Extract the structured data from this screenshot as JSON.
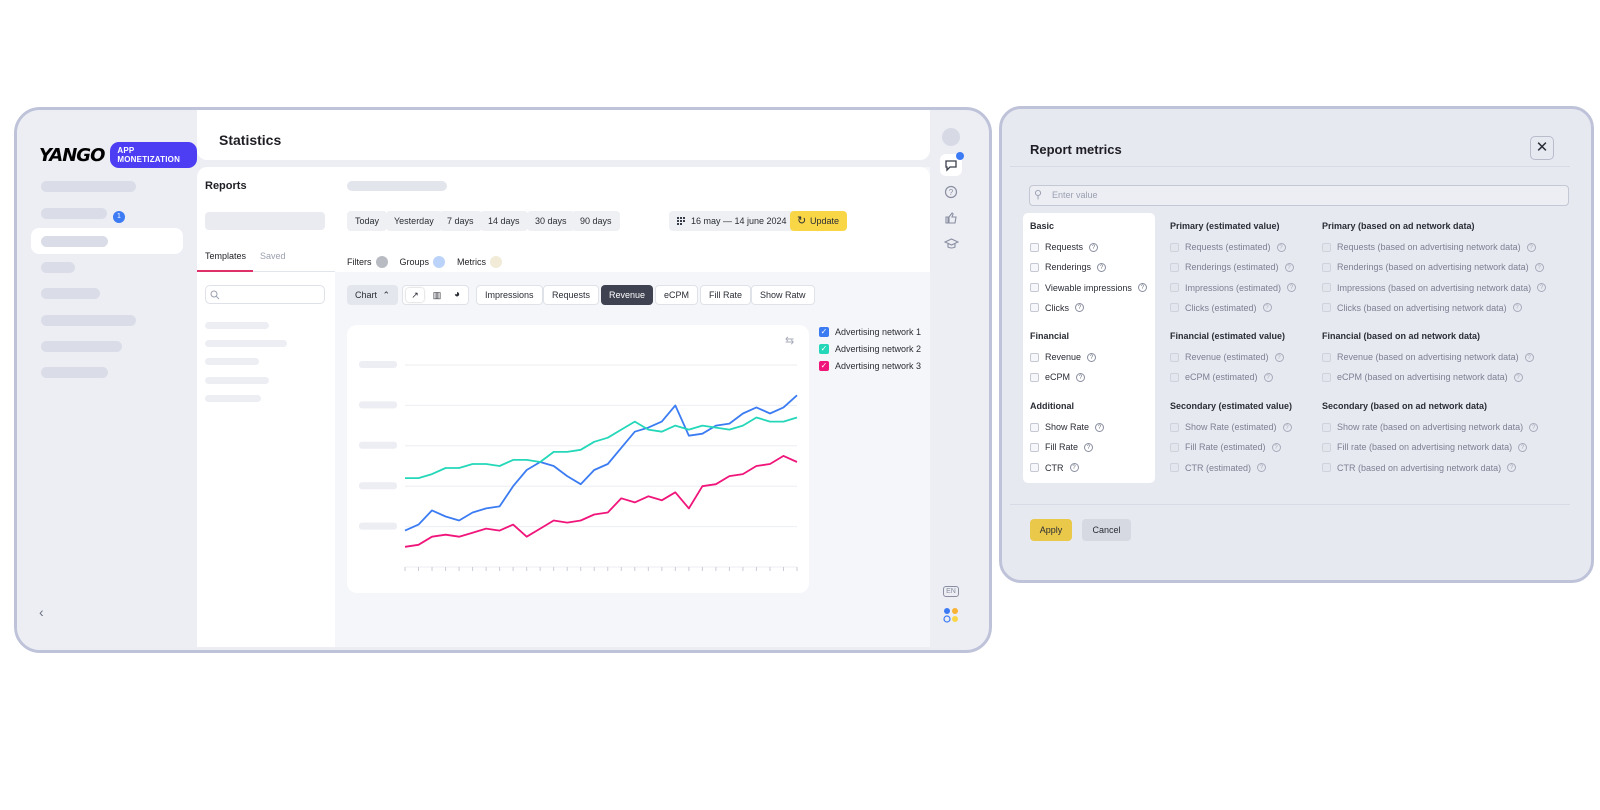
{
  "brand": {
    "name": "YANGO",
    "badge": "APP MONETIZATION",
    "nav_badge_count": "1"
  },
  "header": {
    "title": "Statistics"
  },
  "reports": {
    "title": "Reports",
    "tabs": [
      "Templates",
      "Saved"
    ]
  },
  "toolbar": {
    "periods": [
      "Today",
      "Yesterday",
      "7 days",
      "14 days",
      "30 days",
      "90 days"
    ],
    "date_range": "16 may — 14 june 2024",
    "update_label": "Update",
    "filters_label": "Filters",
    "groups_label": "Groups",
    "metrics_label": "Metrics",
    "chart_label": "Chart",
    "metric_tabs": [
      "Impressions",
      "Requests",
      "Revenue",
      "eCPM",
      "Fill Rate",
      "Show Ratw"
    ],
    "active_metric": "Revenue"
  },
  "rail": {
    "language": "EN"
  },
  "colors": {
    "network_1": "#3b7cf2",
    "network_2": "#23d7b8",
    "network_3": "#f0157a",
    "accent_yellow": "#f9d645"
  },
  "chart_data": {
    "type": "line",
    "x": [
      1,
      2,
      3,
      4,
      5,
      6,
      7,
      8,
      9,
      10,
      11,
      12,
      13,
      14,
      15,
      16,
      17,
      18,
      19,
      20,
      21,
      22,
      23,
      24,
      25,
      26,
      27,
      28,
      29,
      30
    ],
    "series": [
      {
        "name": "Advertising network 1",
        "values": [
          18,
          21,
          28,
          25,
          23,
          27,
          29,
          30,
          40,
          48,
          52,
          50,
          45,
          41,
          48,
          51,
          59,
          67,
          69,
          72,
          80,
          65,
          66,
          70,
          71,
          76,
          79,
          76,
          79,
          85
        ]
      },
      {
        "name": "Advertising network 2",
        "values": [
          44,
          44,
          46,
          49,
          49,
          51,
          51,
          50,
          53,
          53,
          52,
          57,
          57,
          58,
          62,
          64,
          68,
          72,
          68,
          67,
          70,
          68,
          70,
          69,
          68,
          70,
          74,
          72,
          72,
          74
        ]
      },
      {
        "name": "Advertising network 3",
        "values": [
          10,
          11,
          15,
          16,
          15,
          17,
          19,
          18,
          21,
          15,
          19,
          23,
          22,
          23,
          26,
          27,
          34,
          32,
          35,
          33,
          37,
          29,
          40,
          41,
          45,
          46,
          50,
          51,
          55,
          52
        ]
      }
    ],
    "ylim": [
      0,
      100
    ],
    "grid": true,
    "legend": "right"
  },
  "report_metrics": {
    "title": "Report metrics",
    "search_placeholder": "Enter value",
    "columns": [
      {
        "groups": [
          {
            "title": "Basic",
            "items": [
              "Requests",
              "Renderings",
              "Viewable impressions",
              "Clicks"
            ]
          },
          {
            "title": "Financial",
            "items": [
              "Revenue",
              "eCPM"
            ]
          },
          {
            "title": "Additional",
            "items": [
              "Show Rate",
              "Fill Rate",
              "CTR"
            ]
          }
        ]
      },
      {
        "groups": [
          {
            "title": "Primary (estimated value)",
            "items": [
              "Requests (estimated)",
              "Renderings (estimated)",
              "Impressions (estimated)",
              "Clicks (estimated)"
            ]
          },
          {
            "title": "Financial (estimated value)",
            "items": [
              "Revenue (estimated)",
              "eCPM (estimated)"
            ]
          },
          {
            "title": "Secondary (estimated value)",
            "items": [
              "Show Rate (estimated)",
              "Fill Rate (estimated)",
              "CTR (estimated)"
            ]
          }
        ]
      },
      {
        "groups": [
          {
            "title": "Primary (based on ad network data)",
            "items": [
              "Requests (based on advertising network data)",
              "Renderings (based on advertising network data)",
              "Impressions (based on advertising network data)",
              "Clicks (based on advertising network data)"
            ]
          },
          {
            "title": "Financial (based on ad network data)",
            "items": [
              "Revenue (based on advertising network data)",
              "eCPM (based on advertising network data)"
            ]
          },
          {
            "title": "Secondary (based on ad network data)",
            "items": [
              "Show rate (based on advertising network data)",
              "Fill rate (based on advertising network data)",
              "CTR (based on advertising network data)"
            ]
          }
        ]
      }
    ],
    "apply_label": "Apply",
    "cancel_label": "Cancel"
  }
}
